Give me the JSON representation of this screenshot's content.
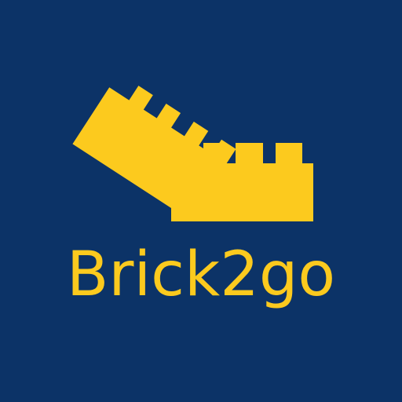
{
  "brand": {
    "name": "Brick2go"
  },
  "colors": {
    "background": "#0c3367",
    "accent": "#fcca1e"
  },
  "icons": {
    "logo": "two-toy-bricks-icon"
  }
}
